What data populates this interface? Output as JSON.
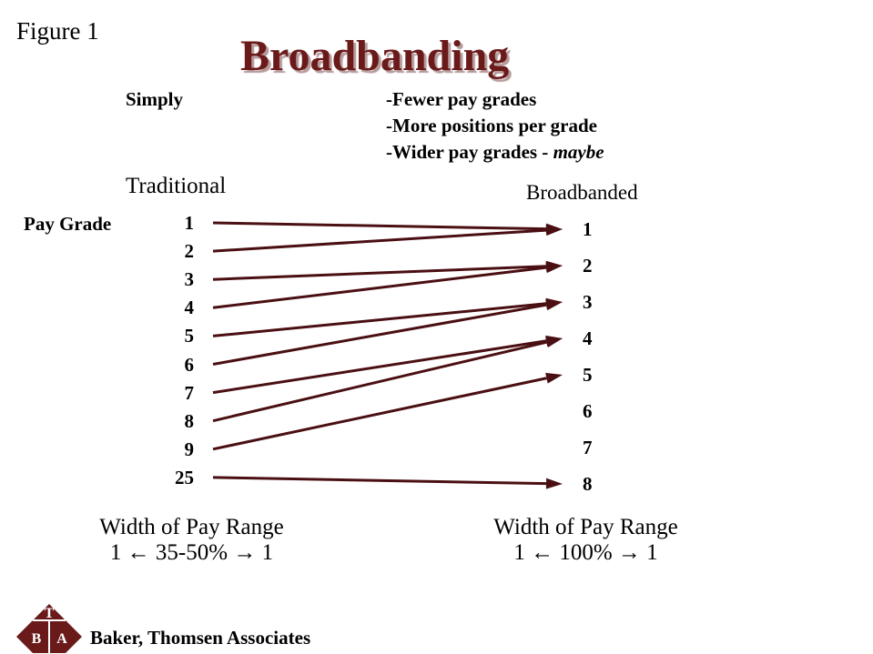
{
  "figure_label": "Figure 1",
  "title": "Broadbanding",
  "simply_label": "Simply",
  "points": [
    {
      "prefix": "-Fewer pay grades",
      "emphasis": ""
    },
    {
      "prefix": "-More positions per grade",
      "emphasis": ""
    },
    {
      "prefix": "-Wider pay grades - ",
      "emphasis": "maybe"
    }
  ],
  "traditional_header": "Traditional",
  "broadbanded_header": "Broadbanded",
  "pay_grade_label": "Pay Grade",
  "traditional_grades": [
    "1",
    "2",
    "3",
    "4",
    "5",
    "6",
    "7",
    "8",
    "9",
    "25"
  ],
  "broadbanded_grades": [
    "1",
    "2",
    "3",
    "4",
    "5",
    "6",
    "7",
    "8"
  ],
  "mappings": [
    [
      0,
      0
    ],
    [
      1,
      0
    ],
    [
      2,
      1
    ],
    [
      3,
      1
    ],
    [
      4,
      2
    ],
    [
      5,
      2
    ],
    [
      6,
      3
    ],
    [
      7,
      3
    ],
    [
      8,
      4
    ],
    [
      9,
      7
    ]
  ],
  "traditional_width": {
    "title": "Width of Pay Range",
    "range": "1 ←  35-50%  → 1"
  },
  "broadband_width": {
    "title": "Width of Pay Range",
    "range": "1 ←  100%  → 1"
  },
  "logo": {
    "top": "T",
    "left": "B",
    "right": "A",
    "color": "#6b1a1a"
  },
  "company": "Baker, Thomsen Associates",
  "colors": {
    "accent": "#6b1a1a",
    "arrow": "#4a0f12"
  }
}
